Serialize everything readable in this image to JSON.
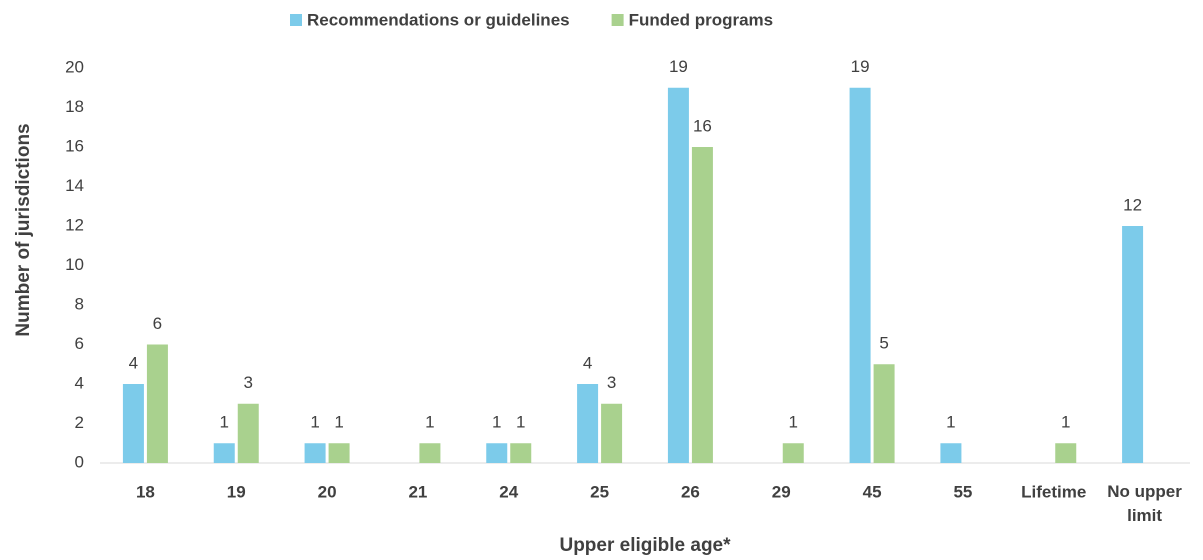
{
  "chart_data": {
    "type": "bar",
    "x_label": "Upper eligible age*",
    "y_label": "Number of jurisdictions",
    "categories": [
      "18",
      "19",
      "20",
      "21",
      "24",
      "25",
      "26",
      "29",
      "45",
      "55",
      "Lifetime",
      "No upper limit"
    ],
    "series": [
      {
        "name": "Recommendations or guidelines",
        "color": "#7ccbea",
        "values": [
          4,
          1,
          1,
          null,
          1,
          4,
          19,
          null,
          19,
          1,
          null,
          12
        ]
      },
      {
        "name": "Funded programs",
        "color": "#a9d18e",
        "values": [
          6,
          3,
          1,
          1,
          1,
          3,
          16,
          1,
          5,
          null,
          1,
          null
        ]
      }
    ],
    "ylim": [
      0,
      20
    ],
    "yticks": [
      0,
      2,
      4,
      6,
      8,
      10,
      12,
      14,
      16,
      18,
      20
    ],
    "grid": false,
    "legend": "top"
  }
}
